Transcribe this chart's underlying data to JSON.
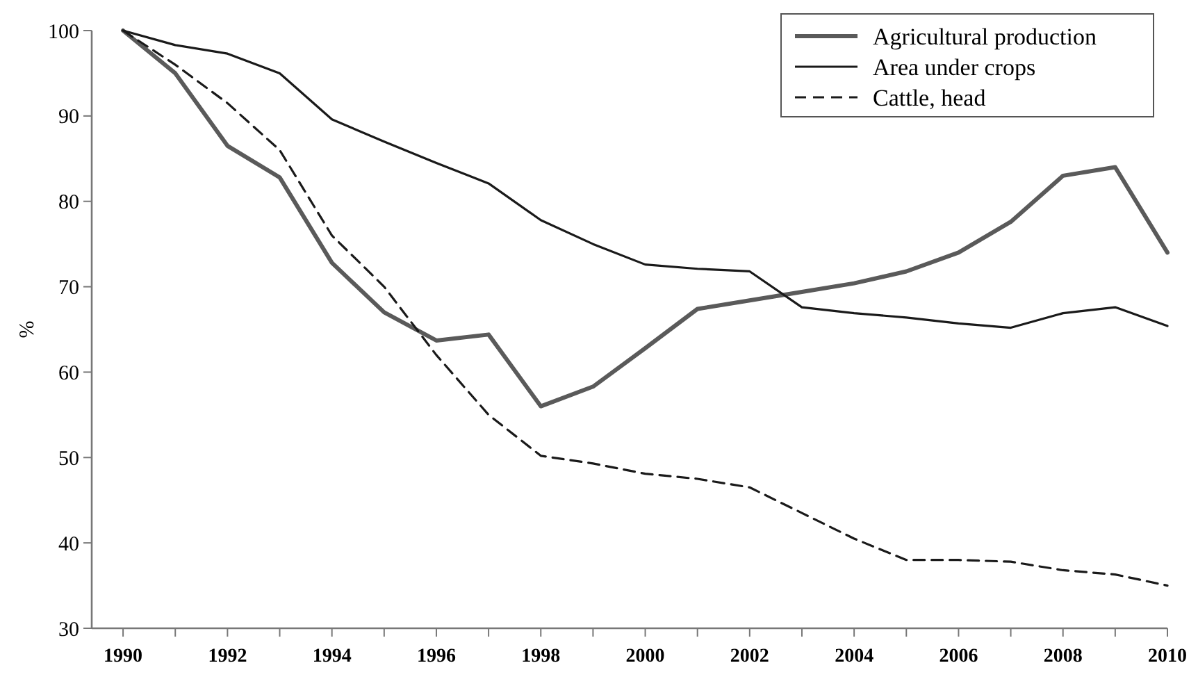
{
  "chart_data": {
    "type": "line",
    "ylabel": "%",
    "x": [
      1990,
      1991,
      1992,
      1993,
      1994,
      1995,
      1996,
      1997,
      1998,
      1999,
      2000,
      2001,
      2002,
      2003,
      2004,
      2005,
      2006,
      2007,
      2008,
      2009,
      2010
    ],
    "series": [
      {
        "name": "Agricultural production",
        "color": "#5a5a5a",
        "line_style": "solid",
        "values": [
          100,
          95,
          86.5,
          82.8,
          72.8,
          67,
          63.7,
          64.4,
          56,
          58.3,
          62.8,
          67.4,
          68.4,
          69.4,
          70.4,
          71.8,
          74,
          77.6,
          83,
          84,
          74
        ]
      },
      {
        "name": "Area under crops",
        "color": "#1a1a1a",
        "line_style": "solid",
        "values": [
          100,
          98.3,
          97.3,
          95,
          89.6,
          87,
          84.5,
          82.1,
          77.8,
          75,
          72.6,
          72.1,
          71.8,
          67.6,
          66.9,
          66.4,
          65.7,
          65.2,
          66.9,
          67.6,
          65.4
        ]
      },
      {
        "name": "Cattle, head",
        "color": "#1a1a1a",
        "line_style": "dashed",
        "values": [
          100,
          96,
          91.5,
          86,
          76,
          70,
          62,
          55,
          50.2,
          49.3,
          48.1,
          47.5,
          46.5,
          43.5,
          40.5,
          38,
          38,
          37.8,
          36.8,
          36.3,
          35
        ]
      }
    ],
    "xlim": [
      1989.4,
      2010
    ],
    "ylim": [
      30,
      100
    ],
    "yticks": [
      30,
      40,
      50,
      60,
      70,
      80,
      90,
      100
    ],
    "xticks": [
      1990,
      {
        "value": 1991,
        "label": null
      },
      1992,
      {
        "value": 1993,
        "label": null
      },
      1994,
      {
        "value": 1995,
        "label": null
      },
      1996,
      {
        "value": 1997,
        "label": null
      },
      1998,
      {
        "value": 1999,
        "label": null
      },
      2000,
      {
        "value": 2001,
        "label": null
      },
      2002,
      {
        "value": 2003,
        "label": null
      },
      2004,
      {
        "value": 2005,
        "label": null
      },
      2006,
      {
        "value": 2007,
        "label": null
      },
      2008,
      {
        "value": 2009,
        "label": null
      },
      2010
    ],
    "grid": false,
    "legend": "top right"
  }
}
